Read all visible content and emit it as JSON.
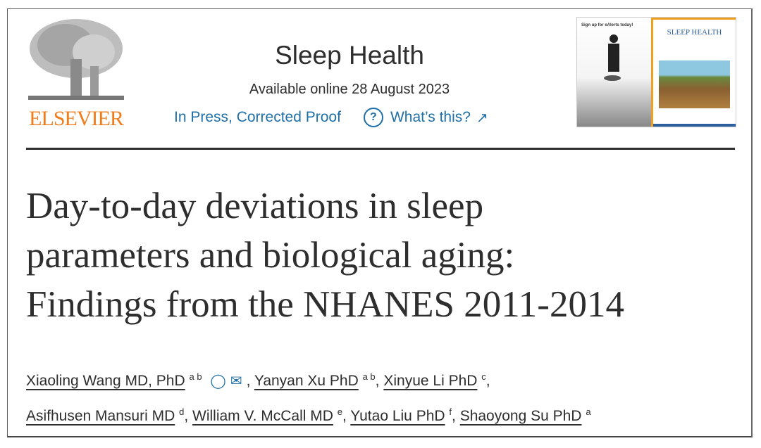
{
  "publisher": {
    "logo_text": "ELSEVIER"
  },
  "journal": {
    "title": "Sleep Health",
    "available": "Available online 28 August 2023",
    "status": "In Press, Corrected Proof",
    "whats_this": "What’s this?"
  },
  "cover": {
    "ad_text": "Sign up for eAlerts today!",
    "journal_name": "SLEEP HEALTH"
  },
  "article": {
    "title_lines": [
      "Day-to-day deviations in sleep",
      "parameters and biological aging:",
      "Findings from the NHANES 2011-2014"
    ]
  },
  "authors": [
    {
      "name": "Xiaoling Wang MD, PhD",
      "sup": "a b"
    },
    {
      "name": "Yanyan Xu PhD",
      "sup": "a b"
    },
    {
      "name": "Xinyue Li PhD",
      "sup": "c"
    },
    {
      "name": "Asifhusen Mansuri MD",
      "sup": "d"
    },
    {
      "name": "William V. McCall MD",
      "sup": "e"
    },
    {
      "name": "Yutao Liu PhD",
      "sup": "f"
    },
    {
      "name": "Shaoyong Su PhD",
      "sup": "a"
    }
  ],
  "colors": {
    "link": "#1f6fa8",
    "elsevier_orange": "#f07c1b",
    "text": "#2e2e2e"
  }
}
